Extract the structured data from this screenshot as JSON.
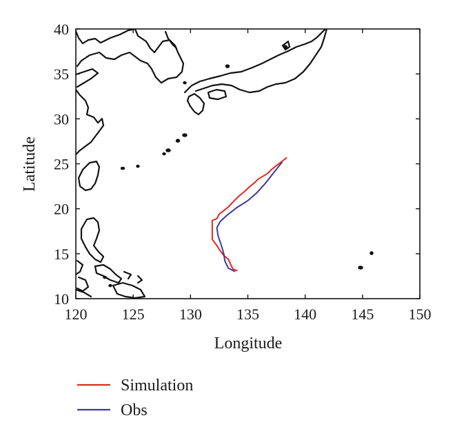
{
  "chart_data": {
    "type": "line",
    "xlabel": "Longitude",
    "ylabel": "Latitude",
    "xlim": [
      120,
      150
    ],
    "ylim": [
      10,
      40
    ],
    "x_ticks": [
      120,
      125,
      130,
      135,
      140,
      145,
      150
    ],
    "y_ticks": [
      10,
      15,
      20,
      25,
      30,
      35,
      40
    ],
    "x_tick_labels": [
      "120",
      "125",
      "130",
      "135",
      "140",
      "145",
      "150"
    ],
    "y_tick_labels": [
      "10",
      "15",
      "20",
      "25",
      "30",
      "35",
      "40"
    ],
    "grid": false,
    "legend_position": "bottom-left, below plot",
    "basemap": "coastlines (East Asia / Western Pacific)",
    "series": [
      {
        "name": "Simulation",
        "color": "#e8261c",
        "points": [
          [
            134.1,
            13.1
          ],
          [
            133.7,
            13.3
          ],
          [
            133.5,
            13.8
          ],
          [
            133.3,
            14.4
          ],
          [
            132.9,
            14.8
          ],
          [
            132.6,
            15.3
          ],
          [
            132.3,
            15.9
          ],
          [
            131.9,
            16.6
          ],
          [
            131.9,
            17.4
          ],
          [
            131.9,
            18.1
          ],
          [
            131.9,
            18.7
          ],
          [
            132.3,
            18.9
          ],
          [
            132.5,
            19.4
          ],
          [
            132.9,
            19.8
          ],
          [
            133.3,
            20.2
          ],
          [
            133.6,
            20.6
          ],
          [
            133.9,
            21.0
          ],
          [
            134.3,
            21.5
          ],
          [
            134.7,
            21.9
          ],
          [
            135.1,
            22.4
          ],
          [
            135.5,
            22.8
          ],
          [
            135.9,
            23.3
          ],
          [
            136.3,
            23.6
          ],
          [
            136.7,
            23.9
          ],
          [
            137.1,
            24.4
          ],
          [
            137.5,
            24.8
          ],
          [
            137.9,
            25.2
          ],
          [
            138.4,
            25.7
          ]
        ]
      },
      {
        "name": "Obs",
        "color": "#3a3a9f",
        "points": [
          [
            133.9,
            13.0
          ],
          [
            133.3,
            13.4
          ],
          [
            133.0,
            14.2
          ],
          [
            132.9,
            15.0
          ],
          [
            132.7,
            15.9
          ],
          [
            132.4,
            17.0
          ],
          [
            132.3,
            17.9
          ],
          [
            132.6,
            18.6
          ],
          [
            133.2,
            19.3
          ],
          [
            134.0,
            20.1
          ],
          [
            135.0,
            20.9
          ],
          [
            135.8,
            21.8
          ],
          [
            136.5,
            22.8
          ],
          [
            137.0,
            23.6
          ],
          [
            137.5,
            24.4
          ],
          [
            138.0,
            25.2
          ]
        ]
      }
    ]
  },
  "map": {
    "line_color": "#111111",
    "background": "#ffffff"
  }
}
